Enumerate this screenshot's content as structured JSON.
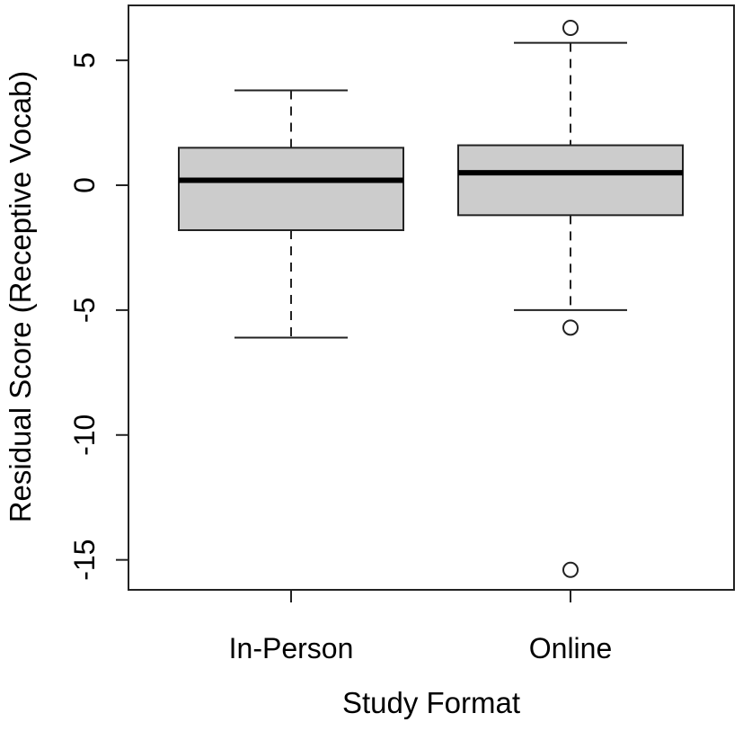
{
  "chart_data": {
    "type": "boxplot",
    "title": "",
    "xlabel": "Study Format",
    "ylabel": "Residual Score (Receptive Vocab)",
    "ylim": [
      -16.2,
      7.2
    ],
    "y_ticks": [
      5,
      0,
      -5,
      -10,
      -15
    ],
    "y_tick_labels": [
      "5",
      "0",
      "-5",
      "-10",
      "-15"
    ],
    "categories": [
      "In-Person",
      "Online"
    ],
    "grid": false,
    "legend": "none",
    "box_fill": "#cccccc",
    "series": [
      {
        "category": "In-Person",
        "whisker_low": -6.1,
        "q1": -1.8,
        "median": 0.2,
        "q3": 1.5,
        "whisker_high": 3.8,
        "outliers": []
      },
      {
        "category": "Online",
        "whisker_low": -5.0,
        "q1": -1.2,
        "median": 0.5,
        "q3": 1.6,
        "whisker_high": 5.7,
        "outliers": [
          6.3,
          -5.7,
          -15.4
        ]
      }
    ]
  }
}
